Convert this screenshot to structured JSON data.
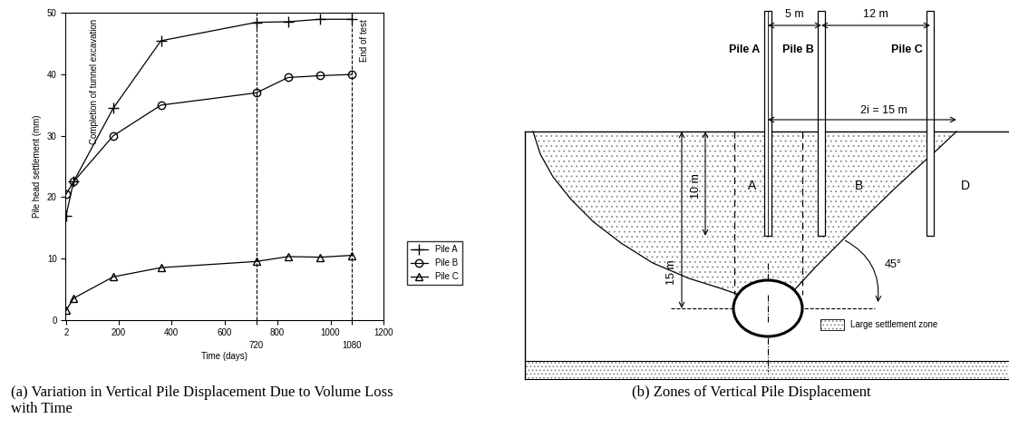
{
  "chart_data": {
    "type": "line",
    "caption": "(a) Variation in Vertical Pile Displacement Due to Volume Loss with Time",
    "xlabel": "Time (days)",
    "ylabel": "Pile head settlement (mm)",
    "xlim": [
      0,
      1200
    ],
    "ylim": [
      0,
      50
    ],
    "xticks": [
      2,
      200,
      400,
      600,
      720,
      800,
      1000,
      1080,
      1200
    ],
    "yticks": [
      0,
      10,
      20,
      30,
      40,
      50
    ],
    "grid": false,
    "legend": "lower left",
    "annotations": [
      "Completion of tunnel excavation",
      "End of test"
    ],
    "reference_lines": [
      720,
      1080
    ],
    "x": [
      2,
      30,
      180,
      360,
      720,
      840,
      960,
      1080
    ],
    "series": [
      {
        "name": "Pile A",
        "color": "#000000",
        "marker": "plus",
        "line_style": "solid",
        "values": [
          17,
          22.5,
          34.5,
          45.5,
          48.5,
          48.6,
          49,
          49
        ]
      },
      {
        "name": "Pile B",
        "color": "#000000",
        "marker": "circle",
        "line_style": "solid",
        "values": [
          20.5,
          22.5,
          30,
          35,
          37,
          39.5,
          39.8,
          40
        ]
      },
      {
        "name": "Pile C",
        "color": "#000000",
        "marker": "triangle",
        "line_style": "solid",
        "values": [
          1.5,
          3.5,
          7,
          8.5,
          9.5,
          10.3,
          10.2,
          10.5
        ]
      }
    ]
  },
  "diagram": {
    "caption": "(b) Zones of Vertical Pile Displacement",
    "piles": [
      "Pile A",
      "Pile B",
      "Pile C"
    ],
    "dimensions": {
      "spacing_ab": "5 m",
      "spacing_bc": "12 m",
      "trough_width": "2i = 15 m",
      "pile_length": "10 m",
      "tunnel_depth": "15 m"
    },
    "zones": [
      "A",
      "B",
      "D"
    ],
    "angle": "45°",
    "zone_key": "Large settlement zone"
  }
}
